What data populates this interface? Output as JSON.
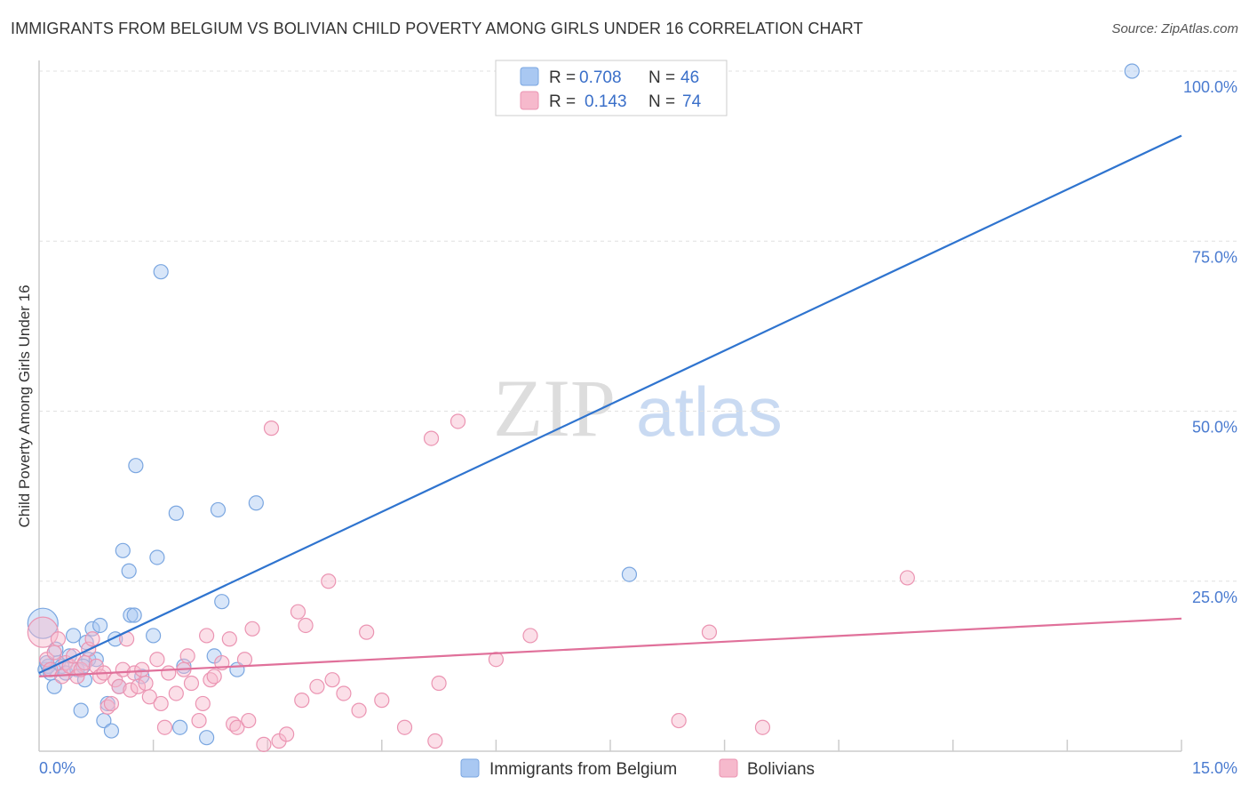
{
  "header": {
    "title": "IMMIGRANTS FROM BELGIUM VS BOLIVIAN CHILD POVERTY AMONG GIRLS UNDER 16 CORRELATION CHART",
    "source": "Source: ZipAtlas.com"
  },
  "watermark": {
    "zip": "ZIP",
    "atlas": "atlas"
  },
  "colors": {
    "belgium_fill": "#a9c8f2",
    "belgium_stroke": "#7aa6e0",
    "belgium_line": "#2f74cf",
    "bolivia_fill": "#f6b9cc",
    "bolivia_stroke": "#eb94b2",
    "bolivia_line": "#e0709a",
    "tick_text": "#4a7bd0",
    "grid": "#e0e0e0"
  },
  "chart_data": {
    "type": "scatter",
    "title": "IMMIGRANTS FROM BELGIUM VS BOLIVIAN CHILD POVERTY AMONG GIRLS UNDER 16 CORRELATION CHART",
    "xlabel": "",
    "ylabel": "Child Poverty Among Girls Under 16",
    "xlim": [
      0,
      15
    ],
    "ylim": [
      0,
      100
    ],
    "x_tick_labels": [
      "0.0%",
      "15.0%"
    ],
    "y_ticks": [
      25,
      50,
      75,
      100
    ],
    "y_tick_labels": [
      "25.0%",
      "50.0%",
      "75.0%",
      "100.0%"
    ],
    "legend": [
      {
        "r_label": "R =",
        "r_value": "0.708",
        "n_label": "N =",
        "n_value": "46"
      },
      {
        "r_label": "R =",
        "r_value": "0.143",
        "n_label": "N =",
        "n_value": "74"
      }
    ],
    "series": [
      {
        "name": "Immigrants from Belgium",
        "trend": {
          "x": [
            0,
            15
          ],
          "y": [
            11.5,
            90.5
          ]
        },
        "points": [
          [
            0.05,
            18.8
          ],
          [
            0.08,
            12.0
          ],
          [
            0.12,
            12.5
          ],
          [
            0.15,
            11.5
          ],
          [
            0.2,
            9.5
          ],
          [
            0.22,
            15.0
          ],
          [
            0.25,
            13.0
          ],
          [
            0.3,
            12.5
          ],
          [
            0.35,
            11.5
          ],
          [
            0.4,
            14.0
          ],
          [
            0.45,
            17.0
          ],
          [
            0.5,
            12.0
          ],
          [
            0.55,
            6.0
          ],
          [
            0.6,
            10.5
          ],
          [
            0.62,
            16.0
          ],
          [
            0.65,
            13.5
          ],
          [
            0.7,
            18.0
          ],
          [
            0.75,
            13.5
          ],
          [
            0.8,
            18.5
          ],
          [
            0.85,
            4.5
          ],
          [
            0.9,
            7.0
          ],
          [
            0.95,
            3.0
          ],
          [
            1.0,
            16.5
          ],
          [
            1.05,
            9.5
          ],
          [
            1.1,
            29.5
          ],
          [
            1.18,
            26.5
          ],
          [
            1.2,
            20.0
          ],
          [
            1.25,
            20.0
          ],
          [
            1.27,
            42.0
          ],
          [
            1.35,
            11.0
          ],
          [
            1.5,
            17.0
          ],
          [
            1.55,
            28.5
          ],
          [
            1.6,
            70.5
          ],
          [
            1.8,
            35.0
          ],
          [
            1.85,
            3.5
          ],
          [
            1.9,
            12.5
          ],
          [
            2.2,
            2.0
          ],
          [
            2.3,
            14.0
          ],
          [
            2.35,
            35.5
          ],
          [
            2.4,
            22.0
          ],
          [
            2.6,
            12.0
          ],
          [
            2.85,
            36.5
          ],
          [
            7.75,
            26.0
          ],
          [
            14.35,
            100.0
          ],
          [
            0.1,
            13.0
          ],
          [
            0.58,
            12.5
          ]
        ]
      },
      {
        "name": "Bolivians",
        "trend": {
          "x": [
            0,
            15
          ],
          "y": [
            11.0,
            19.5
          ]
        },
        "points": [
          [
            0.05,
            17.5
          ],
          [
            0.1,
            13.5
          ],
          [
            0.15,
            12.0
          ],
          [
            0.2,
            14.5
          ],
          [
            0.25,
            16.5
          ],
          [
            0.3,
            11.0
          ],
          [
            0.35,
            13.0
          ],
          [
            0.4,
            12.5
          ],
          [
            0.45,
            14.0
          ],
          [
            0.5,
            11.0
          ],
          [
            0.55,
            12.0
          ],
          [
            0.6,
            13.0
          ],
          [
            0.65,
            15.0
          ],
          [
            0.7,
            16.5
          ],
          [
            0.75,
            12.5
          ],
          [
            0.8,
            11.0
          ],
          [
            0.85,
            11.5
          ],
          [
            0.9,
            6.5
          ],
          [
            0.95,
            7.0
          ],
          [
            1.0,
            10.5
          ],
          [
            1.05,
            9.5
          ],
          [
            1.1,
            12.0
          ],
          [
            1.15,
            16.5
          ],
          [
            1.2,
            9.0
          ],
          [
            1.25,
            11.5
          ],
          [
            1.3,
            9.5
          ],
          [
            1.35,
            12.0
          ],
          [
            1.4,
            10.0
          ],
          [
            1.45,
            8.0
          ],
          [
            1.55,
            13.5
          ],
          [
            1.6,
            7.0
          ],
          [
            1.65,
            3.5
          ],
          [
            1.7,
            11.5
          ],
          [
            1.8,
            8.5
          ],
          [
            1.9,
            12.0
          ],
          [
            1.95,
            14.0
          ],
          [
            2.0,
            10.0
          ],
          [
            2.1,
            4.5
          ],
          [
            2.15,
            7.0
          ],
          [
            2.2,
            17.0
          ],
          [
            2.25,
            10.5
          ],
          [
            2.3,
            11.0
          ],
          [
            2.4,
            13.0
          ],
          [
            2.5,
            16.5
          ],
          [
            2.55,
            4.0
          ],
          [
            2.6,
            3.5
          ],
          [
            2.7,
            13.5
          ],
          [
            2.75,
            4.5
          ],
          [
            2.8,
            18.0
          ],
          [
            2.95,
            1.0
          ],
          [
            3.05,
            47.5
          ],
          [
            3.15,
            1.5
          ],
          [
            3.25,
            2.5
          ],
          [
            3.4,
            20.5
          ],
          [
            3.45,
            7.5
          ],
          [
            3.5,
            18.5
          ],
          [
            3.65,
            9.5
          ],
          [
            3.8,
            25.0
          ],
          [
            3.85,
            10.5
          ],
          [
            4.0,
            8.5
          ],
          [
            4.2,
            6.0
          ],
          [
            4.3,
            17.5
          ],
          [
            4.5,
            7.5
          ],
          [
            4.8,
            3.5
          ],
          [
            5.15,
            46.0
          ],
          [
            5.2,
            1.5
          ],
          [
            5.25,
            10.0
          ],
          [
            5.5,
            48.5
          ],
          [
            6.0,
            13.5
          ],
          [
            6.45,
            17.0
          ],
          [
            8.4,
            4.5
          ],
          [
            8.8,
            17.5
          ],
          [
            9.5,
            3.5
          ],
          [
            11.4,
            25.5
          ]
        ]
      }
    ]
  }
}
